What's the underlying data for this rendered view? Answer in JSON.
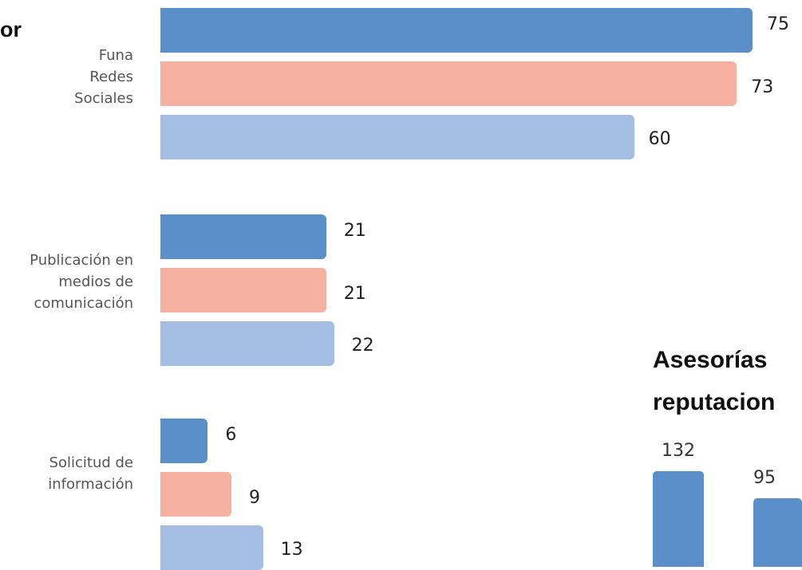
{
  "heading_fragment": "or",
  "colors": {
    "series1": "#5b8fc9",
    "series2": "#f5b0a0",
    "series3": "#a4bde2",
    "column": "#5b8fc9"
  },
  "chart_data": [
    {
      "type": "bar",
      "orientation": "horizontal",
      "categories": [
        [
          "Funa",
          "Redes",
          "Sociales"
        ],
        [
          "Publicación en",
          "medios de",
          "comunicación"
        ],
        [
          "Solicitud de",
          "información"
        ]
      ],
      "series": [
        {
          "values": [
            75,
            73,
            60
          ]
        },
        {
          "values": [
            21,
            21,
            22
          ]
        },
        {
          "values": [
            6,
            9,
            13
          ]
        }
      ],
      "xlim": [
        0,
        75
      ],
      "grid": false,
      "legend": "none"
    },
    {
      "type": "bar",
      "orientation": "vertical",
      "title": [
        "Asesorías",
        "reputacion"
      ],
      "values": [
        132,
        95
      ],
      "grid": false
    }
  ]
}
